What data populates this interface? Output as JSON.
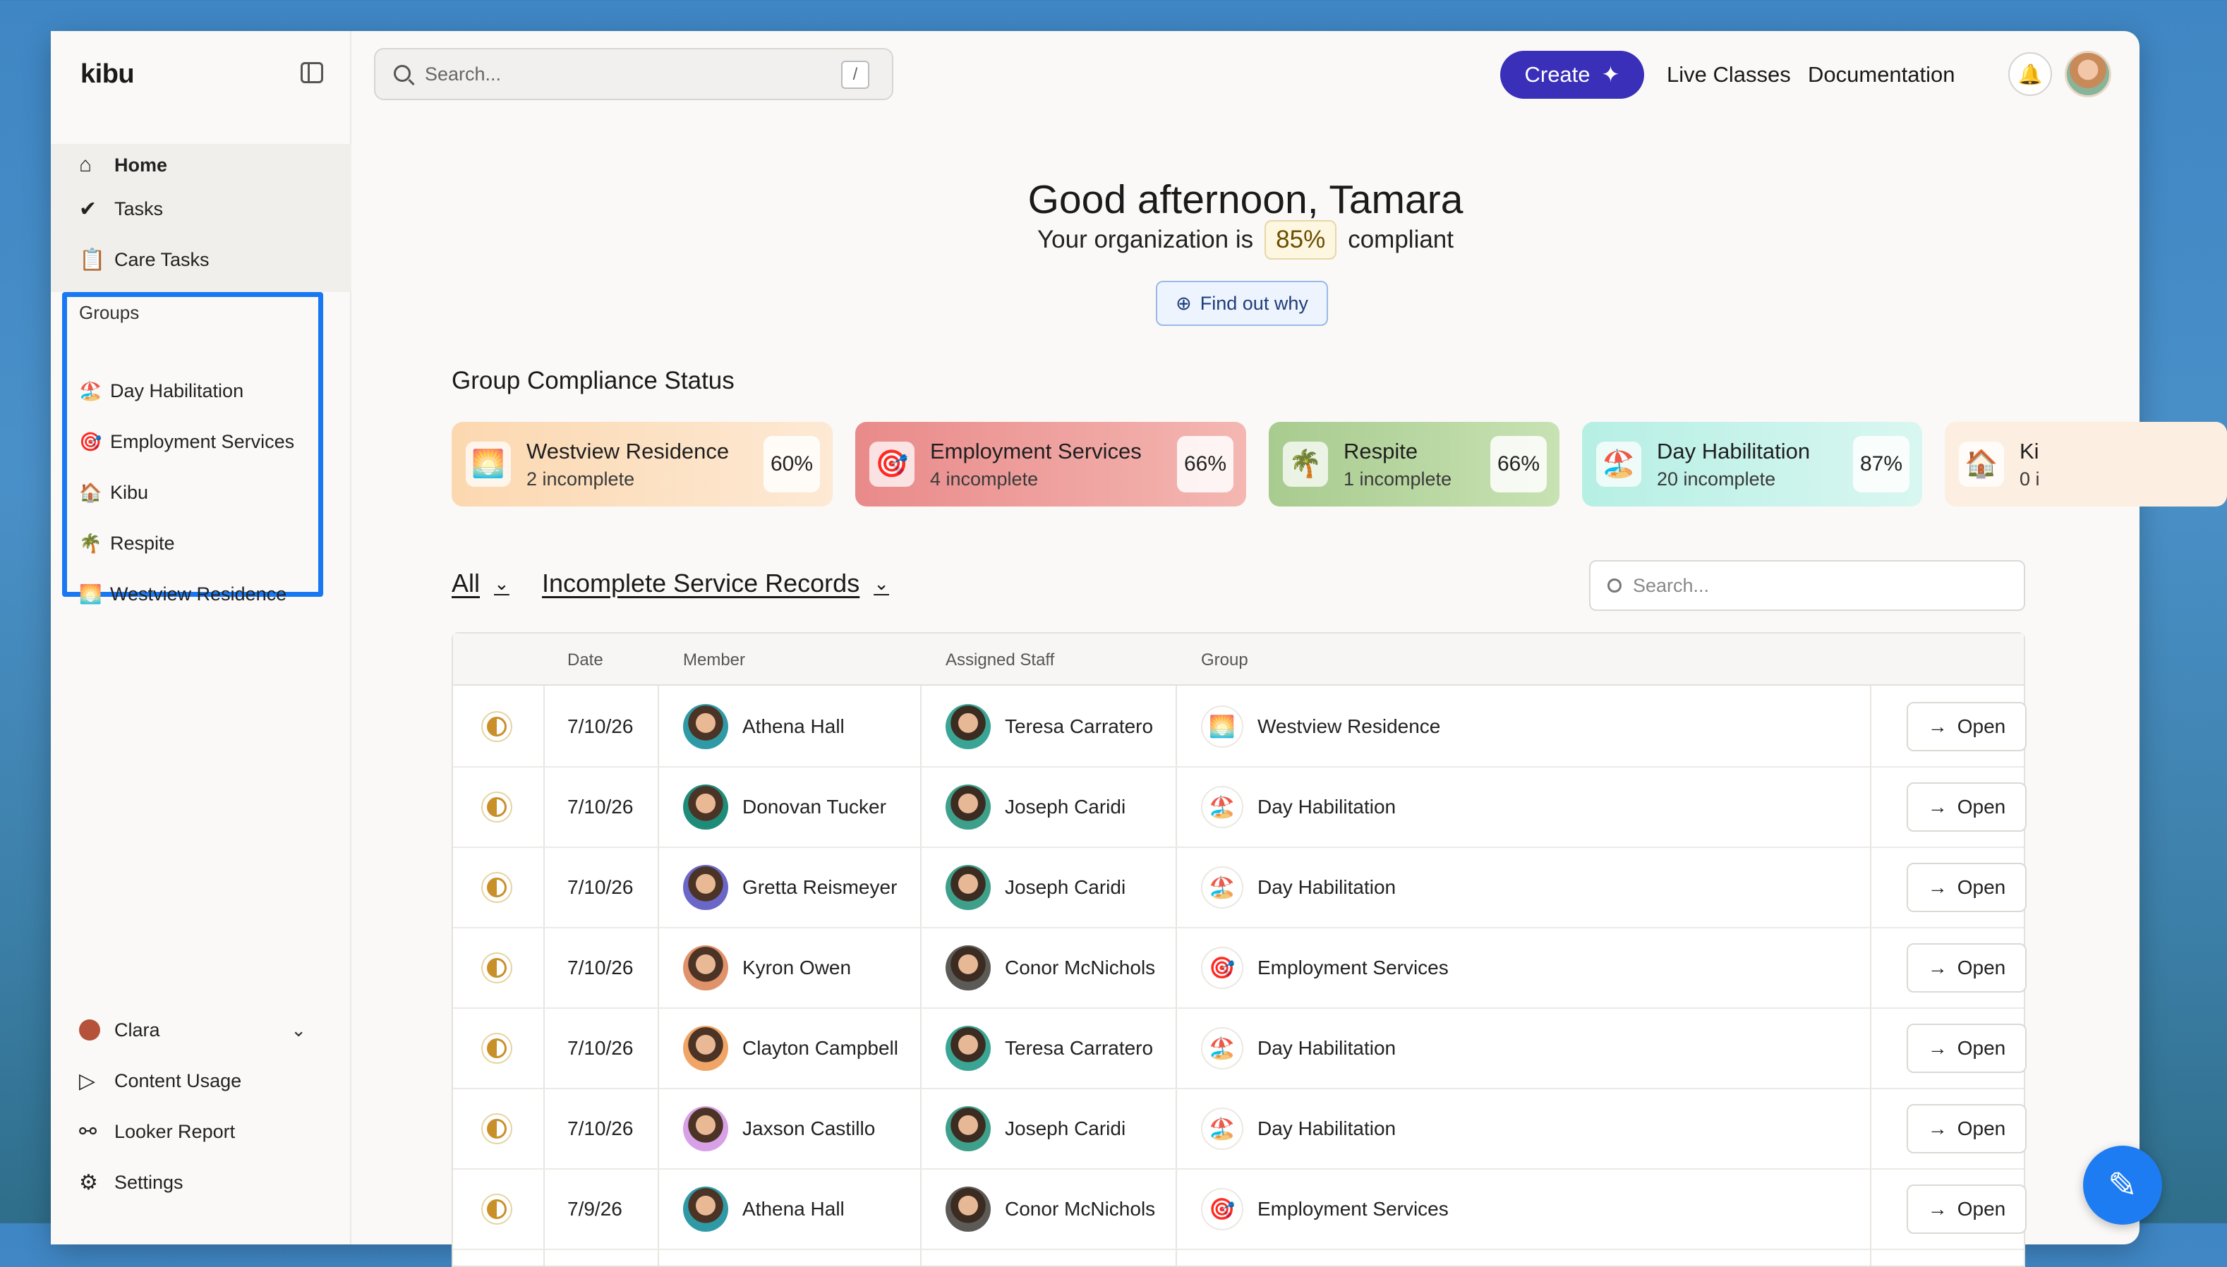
{
  "app": {
    "logo": "kibu"
  },
  "nav": {
    "home": "Home",
    "tasks": "Tasks",
    "care_tasks": "Care Tasks"
  },
  "groups": {
    "label": "Groups",
    "items": [
      {
        "emoji": "🏖️",
        "label": "Day Habilitation"
      },
      {
        "emoji": "🎯",
        "label": "Employment Services"
      },
      {
        "emoji": "🏠",
        "label": "Kibu"
      },
      {
        "emoji": "🌴",
        "label": "Respite"
      },
      {
        "emoji": "🌅",
        "label": "Westview Residence"
      }
    ]
  },
  "bottom_nav": {
    "user": "Clara",
    "content_usage": "Content Usage",
    "looker_report": "Looker Report",
    "settings": "Settings"
  },
  "header": {
    "search_placeholder": "Search...",
    "search_shortcut": "/",
    "create": "Create",
    "live_classes": "Live Classes",
    "documentation": "Documentation"
  },
  "greeting": {
    "title": "Good afternoon, Tamara",
    "prefix": "Your organization is",
    "percent": "85%",
    "suffix": "compliant",
    "find_out_why": "Find out why"
  },
  "compliance": {
    "title": "Group Compliance Status",
    "cards": [
      {
        "emoji": "🌅",
        "name": "Westview Residence",
        "sub": "2 incomplete",
        "pct": "60%",
        "bg": "#fbe3c6"
      },
      {
        "emoji": "🎯",
        "name": "Employment Services",
        "sub": "4 incomplete",
        "pct": "66%",
        "bg": "#ef9f9f"
      },
      {
        "emoji": "🌴",
        "name": "Respite",
        "sub": "1 incomplete",
        "pct": "66%",
        "bg": "#b5d49f"
      },
      {
        "emoji": "🏖️",
        "name": "Day Habilitation",
        "sub": "20 incomplete",
        "pct": "87%",
        "bg": "#c5f2ea"
      },
      {
        "emoji": "🏠",
        "name": "Ki",
        "sub": "0 i",
        "pct": "",
        "bg": "#fcefe1"
      }
    ]
  },
  "filters": {
    "scope": "All",
    "view": "Incomplete Service Records",
    "search_placeholder": "Search..."
  },
  "table": {
    "headers": {
      "date": "Date",
      "member": "Member",
      "staff": "Assigned Staff",
      "group": "Group"
    },
    "open_label": "Open",
    "rows": [
      {
        "date": "7/10/26",
        "member": "Athena Hall",
        "staff": "Teresa Carratero",
        "group": "Westview Residence",
        "group_emoji": "🌅",
        "mc": "#2f9aa6",
        "sc": "#3aa594"
      },
      {
        "date": "7/10/26",
        "member": "Donovan Tucker",
        "staff": "Joseph Caridi",
        "group": "Day Habilitation",
        "group_emoji": "🏖️",
        "mc": "#1f8c7a",
        "sc": "#3ea08a"
      },
      {
        "date": "7/10/26",
        "member": "Gretta Reismeyer",
        "staff": "Joseph Caridi",
        "group": "Day Habilitation",
        "group_emoji": "🏖️",
        "mc": "#6b67c9",
        "sc": "#3ea08a"
      },
      {
        "date": "7/10/26",
        "member": "Kyron Owen",
        "staff": "Conor McNichols",
        "group": "Employment Services",
        "group_emoji": "🎯",
        "mc": "#e0926a",
        "sc": "#5c5a56"
      },
      {
        "date": "7/10/26",
        "member": "Clayton Campbell",
        "staff": "Teresa Carratero",
        "group": "Day Habilitation",
        "group_emoji": "🏖️",
        "mc": "#f0a566",
        "sc": "#3aa594"
      },
      {
        "date": "7/10/26",
        "member": "Jaxson Castillo",
        "staff": "Joseph Caridi",
        "group": "Day Habilitation",
        "group_emoji": "🏖️",
        "mc": "#d8a0e6",
        "sc": "#3ea08a"
      },
      {
        "date": "7/9/26",
        "member": "Athena Hall",
        "staff": "Conor McNichols",
        "group": "Employment Services",
        "group_emoji": "🎯",
        "mc": "#2f9aa6",
        "sc": "#5c5a56"
      }
    ]
  }
}
